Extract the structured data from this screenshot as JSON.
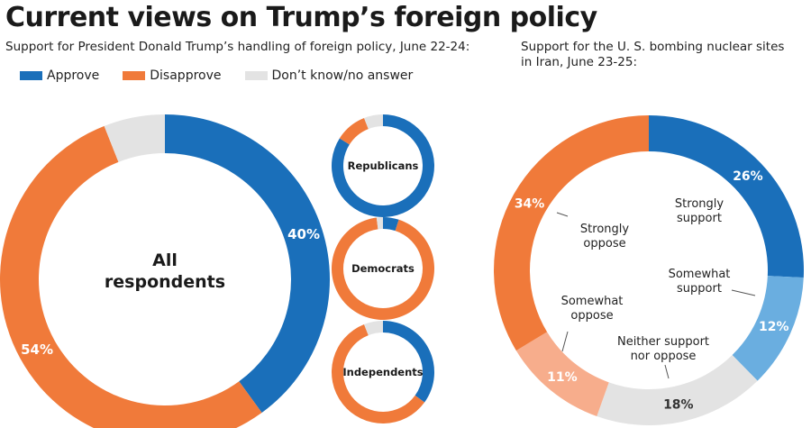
{
  "title": "Current views on Trump’s foreign policy",
  "subtitle_left": "Support for President Donald Trump’s handling of foreign policy, June 22-24:",
  "subtitle_right": "Support for the U. S. bombing nuclear sites in Iran, June 23-25:",
  "colors": {
    "approve": "#1a6fba",
    "disapprove": "#f07a3a",
    "dontknow": "#e3e3e3",
    "somewhat_support": "#6aaee0",
    "somewhat_oppose": "#f7ad8c",
    "neither": "#e3e3e3"
  },
  "chart_data": [
    {
      "type": "pie",
      "title": "All respondents",
      "legend": [
        "Approve",
        "Disapprove",
        "Don’t know/no answer"
      ],
      "slices": [
        {
          "name": "Approve",
          "value": 40,
          "label": "40%"
        },
        {
          "name": "Disapprove",
          "value": 54,
          "label": "54%"
        },
        {
          "name": "Don’t know/no answer",
          "value": 6,
          "label": ""
        }
      ]
    },
    {
      "type": "pie",
      "title": "Republicans",
      "slices": [
        {
          "name": "Approve",
          "value": 84
        },
        {
          "name": "Disapprove",
          "value": 10
        },
        {
          "name": "Don’t know/no answer",
          "value": 6
        }
      ]
    },
    {
      "type": "pie",
      "title": "Democrats",
      "slices": [
        {
          "name": "Approve",
          "value": 5
        },
        {
          "name": "Disapprove",
          "value": 93
        },
        {
          "name": "Don’t know/no answer",
          "value": 2
        }
      ]
    },
    {
      "type": "pie",
      "title": "Independents",
      "slices": [
        {
          "name": "Approve",
          "value": 35
        },
        {
          "name": "Disapprove",
          "value": 59
        },
        {
          "name": "Don’t know/no answer",
          "value": 6
        }
      ]
    },
    {
      "type": "pie",
      "title": "",
      "slices": [
        {
          "name": "Strongly support",
          "value": 26,
          "label": "26%"
        },
        {
          "name": "Somewhat support",
          "value": 12,
          "label": "12%"
        },
        {
          "name": "Neither support nor oppose",
          "value": 18,
          "label": "18%"
        },
        {
          "name": "Somewhat oppose",
          "value": 11,
          "label": "11%"
        },
        {
          "name": "Strongly oppose",
          "value": 34,
          "label": "34%"
        }
      ],
      "annotations": [
        {
          "lines": [
            "Strongly",
            "support"
          ]
        },
        {
          "lines": [
            "Somewhat",
            "support"
          ]
        },
        {
          "lines": [
            "Neither support",
            "nor oppose"
          ]
        },
        {
          "lines": [
            "Somewhat",
            "oppose"
          ]
        },
        {
          "lines": [
            "Strongly",
            "oppose"
          ]
        }
      ]
    }
  ]
}
